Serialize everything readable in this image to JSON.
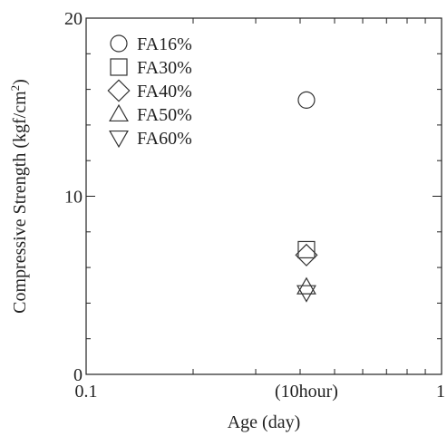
{
  "chart_data": {
    "type": "scatter",
    "xlabel": "Age (day)",
    "ylabel_main": "Compressive Strength (kgf/cm",
    "ylabel_sup": "2",
    "ylabel_close": ")",
    "xscale": "log",
    "xlim": [
      0.1,
      1
    ],
    "ylim": [
      0,
      20
    ],
    "x_ticks": [
      {
        "value": 0.1,
        "label": "0.1"
      },
      {
        "value": 0.4167,
        "label": "(10hour)"
      },
      {
        "value": 1,
        "label": "1"
      }
    ],
    "y_ticks": [
      {
        "value": 0,
        "label": "0"
      },
      {
        "value": 10,
        "label": "10"
      },
      {
        "value": 20,
        "label": "20"
      }
    ],
    "legend_position": "top-left",
    "grid": false,
    "series": [
      {
        "name": "FA16%",
        "marker": "circle",
        "x": [
          0.4167
        ],
        "y": [
          15.4
        ]
      },
      {
        "name": "FA30%",
        "marker": "square",
        "x": [
          0.4167
        ],
        "y": [
          7.0
        ]
      },
      {
        "name": "FA40%",
        "marker": "diamond",
        "x": [
          0.4167
        ],
        "y": [
          6.7
        ]
      },
      {
        "name": "FA50%",
        "marker": "triangle-up",
        "x": [
          0.4167
        ],
        "y": [
          4.9
        ]
      },
      {
        "name": "FA60%",
        "marker": "triangle-down",
        "x": [
          0.4167
        ],
        "y": [
          4.6
        ]
      }
    ]
  }
}
